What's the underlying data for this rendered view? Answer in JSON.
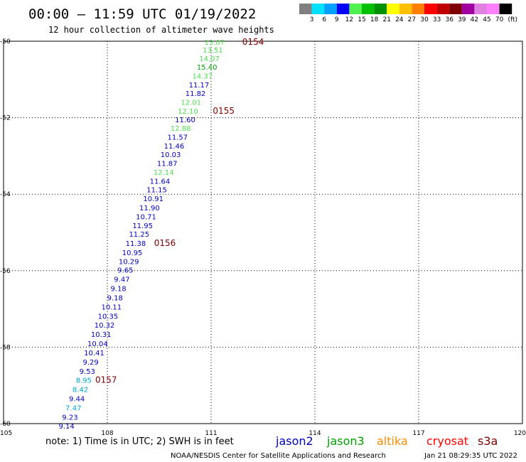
{
  "header": {
    "title": "00:00 – 11:59 UTC 01/19/2022",
    "subtitle": "12 hour collection of altimeter wave heights"
  },
  "scale": {
    "unit": "(ft)",
    "bins": [
      {
        "color": "#808080",
        "label": "3"
      },
      {
        "color": "#00e0ff",
        "label": "6"
      },
      {
        "color": "#00a0ff",
        "label": "9"
      },
      {
        "color": "#0000ff",
        "label": "12"
      },
      {
        "color": "#50f050",
        "label": "15"
      },
      {
        "color": "#00c000",
        "label": "18"
      },
      {
        "color": "#009000",
        "label": "21"
      },
      {
        "color": "#ffff00",
        "label": "24"
      },
      {
        "color": "#ffc000",
        "label": "27"
      },
      {
        "color": "#ff8000",
        "label": "30"
      },
      {
        "color": "#ff0000",
        "label": "33"
      },
      {
        "color": "#c00000",
        "label": "36"
      },
      {
        "color": "#800000",
        "label": "39"
      },
      {
        "color": "#a000a0",
        "label": "42"
      },
      {
        "color": "#e080e0",
        "label": "45"
      },
      {
        "color": "#ff80ff",
        "label": "70"
      },
      {
        "color": "#000000",
        "label": ""
      }
    ]
  },
  "chart_data": {
    "type": "scatter",
    "title": "00:00 – 11:59 UTC 01/19/2022",
    "subtitle": "12 hour collection of altimeter wave heights",
    "xlim": [
      105,
      120
    ],
    "ylim": [
      -60,
      -50
    ],
    "x_ticks": [
      105,
      108,
      111,
      114,
      117,
      120
    ],
    "y_ticks": [
      -50,
      -52,
      -54,
      -56,
      -58,
      -60
    ],
    "y_tick_labels": [
      "-50",
      "-52",
      "-54",
      "-56",
      "-58",
      "-60"
    ],
    "grid": true,
    "series_colors": {
      "jason2": "#0000c0",
      "jason3": "#00a000",
      "altika": "#ff8c00",
      "cryosat": "#ff0000",
      "s3a": "#800000"
    },
    "colors": {
      "blue": "#0000c0",
      "cyan": "#00a8d0",
      "lightgreen": "#50e050",
      "green": "#00a000"
    },
    "points": [
      {
        "lon": 111.1,
        "lat": -50.02,
        "swh": "13.07",
        "c": "lightgreen"
      },
      {
        "lon": 111.05,
        "lat": -50.22,
        "swh": "13.51",
        "c": "lightgreen"
      },
      {
        "lon": 110.95,
        "lat": -50.45,
        "swh": "14.07",
        "c": "lightgreen"
      },
      {
        "lon": 110.88,
        "lat": -50.67,
        "swh": "15.40",
        "c": "green"
      },
      {
        "lon": 110.75,
        "lat": -50.9,
        "swh": "14.37",
        "c": "lightgreen"
      },
      {
        "lon": 110.65,
        "lat": -51.13,
        "swh": "11.17",
        "c": "blue"
      },
      {
        "lon": 110.55,
        "lat": -51.36,
        "swh": "11.82",
        "c": "blue"
      },
      {
        "lon": 110.42,
        "lat": -51.59,
        "swh": "12.01",
        "c": "lightgreen"
      },
      {
        "lon": 110.33,
        "lat": -51.82,
        "swh": "12.10",
        "c": "lightgreen"
      },
      {
        "lon": 110.25,
        "lat": -52.04,
        "swh": "11.60",
        "c": "blue"
      },
      {
        "lon": 110.12,
        "lat": -52.27,
        "swh": "12.88",
        "c": "lightgreen"
      },
      {
        "lon": 110.03,
        "lat": -52.5,
        "swh": "11.57",
        "c": "blue"
      },
      {
        "lon": 109.93,
        "lat": -52.73,
        "swh": "11.46",
        "c": "blue"
      },
      {
        "lon": 109.83,
        "lat": -52.96,
        "swh": "10.03",
        "c": "blue"
      },
      {
        "lon": 109.73,
        "lat": -53.19,
        "swh": "11.87",
        "c": "blue"
      },
      {
        "lon": 109.63,
        "lat": -53.42,
        "swh": "12.14",
        "c": "lightgreen"
      },
      {
        "lon": 109.52,
        "lat": -53.65,
        "swh": "11.64",
        "c": "blue"
      },
      {
        "lon": 109.43,
        "lat": -53.88,
        "swh": "11.15",
        "c": "blue"
      },
      {
        "lon": 109.33,
        "lat": -54.11,
        "swh": "10.91",
        "c": "blue"
      },
      {
        "lon": 109.22,
        "lat": -54.35,
        "swh": "11.90",
        "c": "blue"
      },
      {
        "lon": 109.12,
        "lat": -54.58,
        "swh": "10.71",
        "c": "blue"
      },
      {
        "lon": 109.02,
        "lat": -54.81,
        "swh": "11.95",
        "c": "blue"
      },
      {
        "lon": 108.92,
        "lat": -55.04,
        "swh": "11.25",
        "c": "blue"
      },
      {
        "lon": 108.82,
        "lat": -55.28,
        "swh": "11.38",
        "c": "blue"
      },
      {
        "lon": 108.72,
        "lat": -55.52,
        "swh": "10.95",
        "c": "blue"
      },
      {
        "lon": 108.62,
        "lat": -55.75,
        "swh": "10.29",
        "c": "blue"
      },
      {
        "lon": 108.52,
        "lat": -55.98,
        "swh": "9.65",
        "c": "blue"
      },
      {
        "lon": 108.42,
        "lat": -56.22,
        "swh": "9.47",
        "c": "blue"
      },
      {
        "lon": 108.32,
        "lat": -56.46,
        "swh": "9.18",
        "c": "blue"
      },
      {
        "lon": 108.22,
        "lat": -56.7,
        "swh": "9.18",
        "c": "blue"
      },
      {
        "lon": 108.12,
        "lat": -56.94,
        "swh": "10.11",
        "c": "blue"
      },
      {
        "lon": 108.02,
        "lat": -57.18,
        "swh": "10.35",
        "c": "blue"
      },
      {
        "lon": 107.92,
        "lat": -57.42,
        "swh": "10.32",
        "c": "blue"
      },
      {
        "lon": 107.82,
        "lat": -57.66,
        "swh": "10.31",
        "c": "blue"
      },
      {
        "lon": 107.72,
        "lat": -57.9,
        "swh": "10.04",
        "c": "blue"
      },
      {
        "lon": 107.62,
        "lat": -58.14,
        "swh": "10.41",
        "c": "blue"
      },
      {
        "lon": 107.52,
        "lat": -58.38,
        "swh": "9.29",
        "c": "blue"
      },
      {
        "lon": 107.42,
        "lat": -58.62,
        "swh": "9.53",
        "c": "blue"
      },
      {
        "lon": 107.32,
        "lat": -58.86,
        "swh": "8.95",
        "c": "cyan"
      },
      {
        "lon": 107.22,
        "lat": -59.1,
        "swh": "8.42",
        "c": "cyan"
      },
      {
        "lon": 107.12,
        "lat": -59.34,
        "swh": "9.44",
        "c": "blue"
      },
      {
        "lon": 107.02,
        "lat": -59.58,
        "swh": "7.47",
        "c": "cyan"
      },
      {
        "lon": 106.92,
        "lat": -59.82,
        "swh": "9.23",
        "c": "blue"
      },
      {
        "lon": 106.82,
        "lat": -60.06,
        "swh": "9.14",
        "c": "blue"
      }
    ],
    "passes": [
      {
        "label": "0154",
        "lon": 111.9,
        "lat": -50.02
      },
      {
        "label": "0155",
        "lon": 111.05,
        "lat": -51.82
      },
      {
        "label": "0156",
        "lon": 109.35,
        "lat": -55.28
      },
      {
        "label": "0157",
        "lon": 107.65,
        "lat": -58.86
      }
    ]
  },
  "legend": {
    "note": "note: 1) Time is in UTC; 2) SWH is in feet",
    "satellites": [
      {
        "name": "jason2",
        "color": "#0000c0"
      },
      {
        "name": "jason3",
        "color": "#00a000"
      },
      {
        "name": "altika",
        "color": "#ff8c00"
      },
      {
        "name": "cryosat",
        "color": "#ff0000"
      },
      {
        "name": "s3a",
        "color": "#800000"
      }
    ]
  },
  "footer": {
    "credit": "NOAA/NESDIS Center for Satellite Applications and Research",
    "timestamp": "Jan 21 08:29:35 UTC 2022"
  }
}
